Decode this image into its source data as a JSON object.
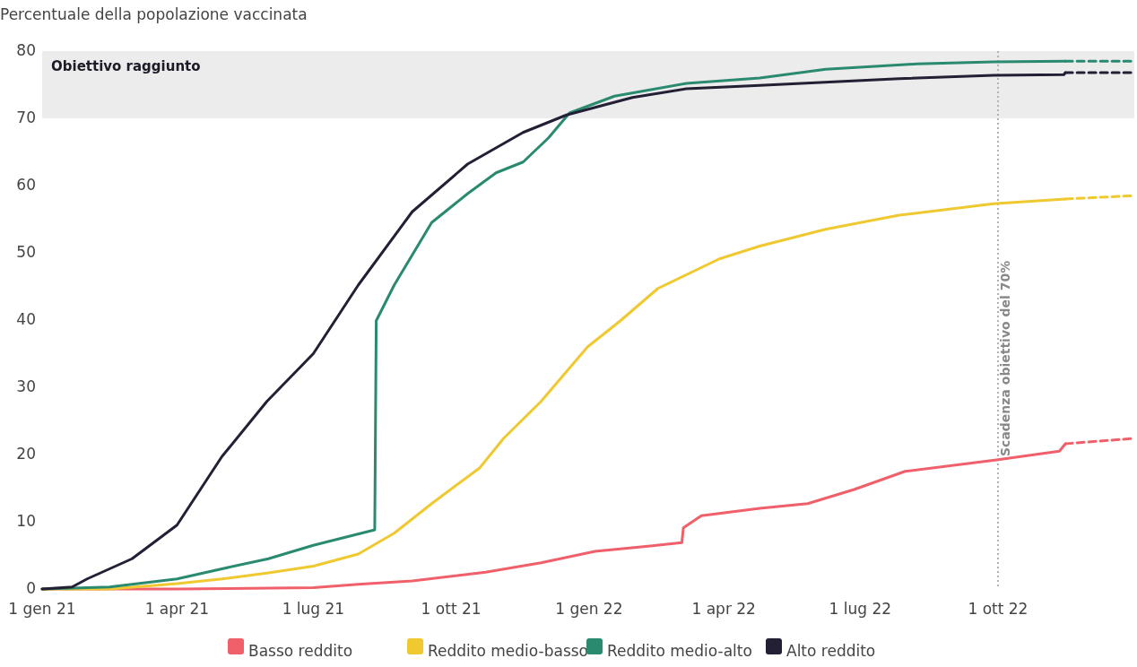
{
  "chart_data": {
    "type": "line",
    "ylabel": "Percentuale della popolazione vaccinata",
    "xlim": [
      "2021-01-01",
      "2022-12-31"
    ],
    "xticks": [
      {
        "value": "2021-01-01",
        "label": "1 gen 21"
      },
      {
        "value": "2021-04-01",
        "label": "1 apr 21"
      },
      {
        "value": "2021-07-01",
        "label": "1 lug 21"
      },
      {
        "value": "2021-10-01",
        "label": "1 ott 21"
      },
      {
        "value": "2022-01-01",
        "label": "1 gen 22"
      },
      {
        "value": "2022-04-01",
        "label": "1 apr 22"
      },
      {
        "value": "2022-07-01",
        "label": "1 lug 22"
      },
      {
        "value": "2022-10-01",
        "label": "1 ott 22"
      }
    ],
    "ylim": [
      0,
      80
    ],
    "yticks": [
      0,
      10,
      20,
      30,
      40,
      50,
      60,
      70,
      80
    ],
    "legend": "bottom",
    "line_style": "solid",
    "marker": "none",
    "bands": [
      {
        "axis": "y",
        "from": 70,
        "to": 80,
        "label": "Obiettivo raggiunto",
        "color": "#ececec"
      }
    ],
    "ref_lines": [
      {
        "axis": "x",
        "value": "2022-10-01",
        "label": "Scadenza obiettivo del 70%",
        "color": "#b0b0b0",
        "line_style": "dotted"
      }
    ],
    "series": [
      {
        "name": "Basso reddito",
        "color": "#f0606a",
        "x": [
          "2021-01-01",
          "2021-04-01",
          "2021-07-01",
          "2021-07-31",
          "2021-09-05",
          "2021-10-24",
          "2021-11-30",
          "2022-01-05",
          "2022-02-11",
          "2022-03-04",
          "2022-03-05",
          "2022-03-17",
          "2022-04-25",
          "2022-05-27",
          "2022-06-27",
          "2022-07-31",
          "2022-09-30",
          "2022-11-11",
          "2022-11-15"
        ],
        "values": [
          0,
          0,
          0.2,
          0.7,
          1.2,
          2.5,
          3.9,
          5.6,
          6.4,
          6.9,
          9.1,
          10.9,
          12,
          12.7,
          14.8,
          17.5,
          19.2,
          20.5,
          21.6
        ]
      },
      {
        "color": "#f0606a",
        "line_style": "dashed",
        "x": [
          "2022-11-15",
          "2022-12-31"
        ],
        "values": [
          21.6,
          22.4
        ]
      },
      {
        "name": "Reddito medio-basso",
        "color": "#f0c830",
        "x": [
          "2021-01-01",
          "2021-02-15",
          "2021-04-01",
          "2021-05-01",
          "2021-06-01",
          "2021-07-01",
          "2021-07-31",
          "2021-08-24",
          "2021-09-18",
          "2021-10-20",
          "2021-11-05",
          "2021-11-30",
          "2021-12-31",
          "2022-01-22",
          "2022-02-16",
          "2022-03-29",
          "2022-04-25",
          "2022-06-08",
          "2022-07-27",
          "2022-09-28",
          "2022-11-15"
        ],
        "values": [
          0,
          0,
          0.8,
          1.5,
          2.4,
          3.4,
          5.2,
          8.3,
          12.7,
          18,
          22.4,
          27.9,
          36,
          39.9,
          44.7,
          49.1,
          51,
          53.5,
          55.6,
          57.3,
          58
        ]
      },
      {
        "color": "#f0c830",
        "line_style": "dashed",
        "x": [
          "2022-11-15",
          "2022-12-31"
        ],
        "values": [
          58,
          58.5
        ]
      },
      {
        "name": "Reddito medio-alto",
        "color": "#2a8a70",
        "x": [
          "2021-01-01",
          "2021-02-15",
          "2021-04-01",
          "2021-05-01",
          "2021-06-01",
          "2021-07-01",
          "2021-08-11",
          "2021-08-12",
          "2021-08-24",
          "2021-09-18",
          "2021-10-12",
          "2021-10-31",
          "2021-11-18",
          "2021-12-05",
          "2021-12-19",
          "2022-01-18",
          "2022-03-07",
          "2022-04-25",
          "2022-06-08",
          "2022-08-08",
          "2022-09-28",
          "2022-11-15"
        ],
        "values": [
          0,
          0.3,
          1.5,
          3,
          4.5,
          6.5,
          8.8,
          39.9,
          45.2,
          54.5,
          58.8,
          61.9,
          63.5,
          67.1,
          70.8,
          73.3,
          75.2,
          76,
          77.3,
          78.1,
          78.4,
          78.5
        ]
      },
      {
        "color": "#2a8a70",
        "line_style": "dashed",
        "x": [
          "2022-11-15",
          "2022-12-31"
        ],
        "values": [
          78.5,
          78.5
        ]
      },
      {
        "name": "Alto reddito",
        "color": "#231f35",
        "x": [
          "2021-01-01",
          "2021-01-21",
          "2021-01-31",
          "2021-03-02",
          "2021-04-01",
          "2021-05-01",
          "2021-05-31",
          "2021-07-01",
          "2021-07-31",
          "2021-09-05",
          "2021-10-12",
          "2021-11-18",
          "2021-12-17",
          "2022-01-30",
          "2022-03-07",
          "2022-04-25",
          "2022-07-27",
          "2022-09-28",
          "2022-11-14",
          "2022-11-15"
        ],
        "values": [
          0,
          0.3,
          1.5,
          4.5,
          9.5,
          19.7,
          27.9,
          35,
          45.2,
          56.1,
          63.2,
          67.9,
          70.5,
          73.1,
          74.4,
          74.9,
          75.9,
          76.4,
          76.5,
          76.8
        ]
      },
      {
        "color": "#231f35",
        "line_style": "dashed",
        "x": [
          "2022-11-15",
          "2022-12-31"
        ],
        "values": [
          76.8,
          76.8
        ]
      }
    ]
  }
}
